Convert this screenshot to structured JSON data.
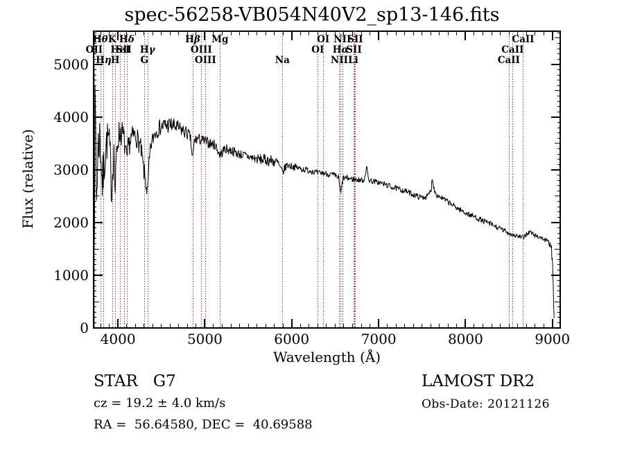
{
  "chart_data": {
    "type": "line",
    "title": "spec-56258-VB054N40V2_sp13-146.fits",
    "xlabel": "Wavelength (Å)",
    "ylabel": "Flux (relative)",
    "xlim": [
      3720,
      9090
    ],
    "ylim": [
      0,
      5630
    ],
    "xticks": [
      4000,
      5000,
      6000,
      7000,
      8000,
      9000
    ],
    "yticks": [
      0,
      1000,
      2000,
      3000,
      4000,
      5000
    ],
    "x_minor_step": 100,
    "y_minor_step": 100,
    "y_medium_step": 500,
    "grid": false,
    "legend": false,
    "line_color": "#000000",
    "spectral_line_color": "#9e4343",
    "spectral_lines": [
      {
        "label": "OII",
        "wavelength": 3727,
        "row": 2
      },
      {
        "label": "Hθ",
        "wavelength": 3798,
        "row": 1
      },
      {
        "label": "Hη",
        "wavelength": 3835,
        "row": 3
      },
      {
        "label": "K",
        "wavelength": 3933,
        "row": 1
      },
      {
        "label": "H",
        "wavelength": 3968,
        "row": 3
      },
      {
        "label": "HeI",
        "wavelength": 4026,
        "row": 2
      },
      {
        "label": "SII",
        "wavelength": 4068,
        "row": 2
      },
      {
        "label": "Hδ",
        "wavelength": 4102,
        "row": 1
      },
      {
        "label": "G",
        "wavelength": 4305,
        "row": 3
      },
      {
        "label": "Hγ",
        "wavelength": 4340,
        "row": 2
      },
      {
        "label": "Hβ",
        "wavelength": 4861,
        "row": 1
      },
      {
        "label": "OIII",
        "wavelength": 4959,
        "row": 2
      },
      {
        "label": "OIII",
        "wavelength": 5007,
        "row": 3
      },
      {
        "label": "Mg",
        "wavelength": 5175,
        "row": 1
      },
      {
        "label": "Na",
        "wavelength": 5893,
        "row": 3
      },
      {
        "label": "OI",
        "wavelength": 6300,
        "row": 2
      },
      {
        "label": "OI",
        "wavelength": 6363,
        "row": 1
      },
      {
        "label": "NII",
        "wavelength": 6548,
        "row": 3
      },
      {
        "label": "Hα",
        "wavelength": 6563,
        "row": 2
      },
      {
        "label": "NII",
        "wavelength": 6583,
        "row": 1
      },
      {
        "label": "Li",
        "wavelength": 6708,
        "row": 3
      },
      {
        "label": "SII",
        "wavelength": 6716,
        "row": 2
      },
      {
        "label": "SII",
        "wavelength": 6731,
        "row": 1
      },
      {
        "label": "CaII",
        "wavelength": 8498,
        "row": 3
      },
      {
        "label": "CaII",
        "wavelength": 8542,
        "row": 2
      },
      {
        "label": "CaII",
        "wavelength": 8662,
        "row": 1
      }
    ],
    "spectrum_end_wavelength": 9025,
    "spectrum_anchors": [
      [
        3715,
        2500,
        1900
      ],
      [
        3722,
        3000,
        1700
      ],
      [
        3730,
        2800,
        1100
      ],
      [
        3738,
        4200,
        700
      ],
      [
        3746,
        3500,
        900
      ],
      [
        3753,
        2400,
        800
      ],
      [
        3762,
        3000,
        700
      ],
      [
        3775,
        3500,
        550
      ],
      [
        3790,
        3640,
        480
      ],
      [
        3805,
        3300,
        470
      ],
      [
        3820,
        2700,
        520
      ],
      [
        3835,
        2950,
        470
      ],
      [
        3852,
        3300,
        420
      ],
      [
        3870,
        3520,
        400
      ],
      [
        3890,
        3620,
        360
      ],
      [
        3910,
        3300,
        360
      ],
      [
        3926,
        2550,
        320
      ],
      [
        3940,
        3020,
        300
      ],
      [
        3955,
        3350,
        290
      ],
      [
        3968,
        2480,
        260
      ],
      [
        3984,
        3300,
        290
      ],
      [
        4000,
        3620,
        300
      ],
      [
        4030,
        3730,
        280
      ],
      [
        4060,
        3650,
        260
      ],
      [
        4085,
        3400,
        240
      ],
      [
        4102,
        3120,
        230
      ],
      [
        4120,
        3430,
        220
      ],
      [
        4150,
        3590,
        220
      ],
      [
        4185,
        3660,
        210
      ],
      [
        4220,
        3610,
        200
      ],
      [
        4260,
        3430,
        200
      ],
      [
        4300,
        2960,
        200
      ],
      [
        4325,
        2720,
        180
      ],
      [
        4341,
        2520,
        160
      ],
      [
        4356,
        3060,
        160
      ],
      [
        4380,
        3460,
        160
      ],
      [
        4420,
        3690,
        160
      ],
      [
        4470,
        3790,
        160
      ],
      [
        4530,
        3840,
        170
      ],
      [
        4600,
        3850,
        170
      ],
      [
        4670,
        3810,
        150
      ],
      [
        4740,
        3750,
        140
      ],
      [
        4800,
        3690,
        130
      ],
      [
        4833,
        3610,
        120
      ],
      [
        4861,
        3170,
        140
      ],
      [
        4880,
        3560,
        120
      ],
      [
        4920,
        3590,
        110
      ],
      [
        4980,
        3550,
        110
      ],
      [
        5050,
        3510,
        105
      ],
      [
        5120,
        3470,
        100
      ],
      [
        5176,
        3280,
        100
      ],
      [
        5230,
        3400,
        95
      ],
      [
        5300,
        3370,
        95
      ],
      [
        5380,
        3310,
        95
      ],
      [
        5460,
        3270,
        90
      ],
      [
        5540,
        3230,
        95
      ],
      [
        5620,
        3200,
        100
      ],
      [
        5700,
        3190,
        110
      ],
      [
        5780,
        3170,
        120
      ],
      [
        5840,
        3130,
        110
      ],
      [
        5893,
        2940,
        90
      ],
      [
        5940,
        3090,
        75
      ],
      [
        6000,
        3070,
        70
      ],
      [
        6080,
        3030,
        70
      ],
      [
        6160,
        3000,
        65
      ],
      [
        6240,
        2980,
        65
      ],
      [
        6302,
        2930,
        65
      ],
      [
        6360,
        2940,
        60
      ],
      [
        6420,
        2920,
        60
      ],
      [
        6480,
        2900,
        60
      ],
      [
        6540,
        2850,
        60
      ],
      [
        6564,
        2530,
        80
      ],
      [
        6590,
        2840,
        60
      ],
      [
        6650,
        2840,
        60
      ],
      [
        6710,
        2820,
        60
      ],
      [
        6770,
        2810,
        55
      ],
      [
        6830,
        2800,
        55
      ],
      [
        6862,
        3050,
        60
      ],
      [
        6885,
        2810,
        55
      ],
      [
        6940,
        2780,
        55
      ],
      [
        7000,
        2760,
        55
      ],
      [
        7080,
        2720,
        55
      ],
      [
        7160,
        2670,
        55
      ],
      [
        7240,
        2630,
        55
      ],
      [
        7320,
        2590,
        55
      ],
      [
        7400,
        2530,
        55
      ],
      [
        7480,
        2480,
        55
      ],
      [
        7560,
        2490,
        55
      ],
      [
        7605,
        2610,
        60
      ],
      [
        7619,
        2900,
        70
      ],
      [
        7634,
        2660,
        60
      ],
      [
        7665,
        2530,
        55
      ],
      [
        7725,
        2470,
        55
      ],
      [
        7800,
        2390,
        55
      ],
      [
        7880,
        2300,
        55
      ],
      [
        7960,
        2220,
        55
      ],
      [
        8040,
        2150,
        55
      ],
      [
        8120,
        2100,
        55
      ],
      [
        8200,
        2030,
        55
      ],
      [
        8280,
        1980,
        55
      ],
      [
        8360,
        1910,
        55
      ],
      [
        8440,
        1850,
        55
      ],
      [
        8500,
        1800,
        50
      ],
      [
        8560,
        1760,
        50
      ],
      [
        8620,
        1730,
        50
      ],
      [
        8665,
        1710,
        50
      ],
      [
        8705,
        1790,
        55
      ],
      [
        8745,
        1820,
        50
      ],
      [
        8795,
        1760,
        50
      ],
      [
        8845,
        1730,
        50
      ],
      [
        8895,
        1690,
        50
      ],
      [
        8935,
        1650,
        55
      ],
      [
        8965,
        1600,
        55
      ],
      [
        8988,
        1530,
        60
      ],
      [
        9002,
        1150,
        130
      ],
      [
        9012,
        550,
        120
      ],
      [
        9022,
        220,
        80
      ]
    ]
  },
  "annotations": {
    "object_class": "STAR   G7",
    "cz": "cz = 19.2 ± 4.0 km/s",
    "radec": "RA =  56.64580, DEC =  40.69588",
    "survey": "LAMOST DR2",
    "obs_date": "Obs-Date: 20121126"
  }
}
